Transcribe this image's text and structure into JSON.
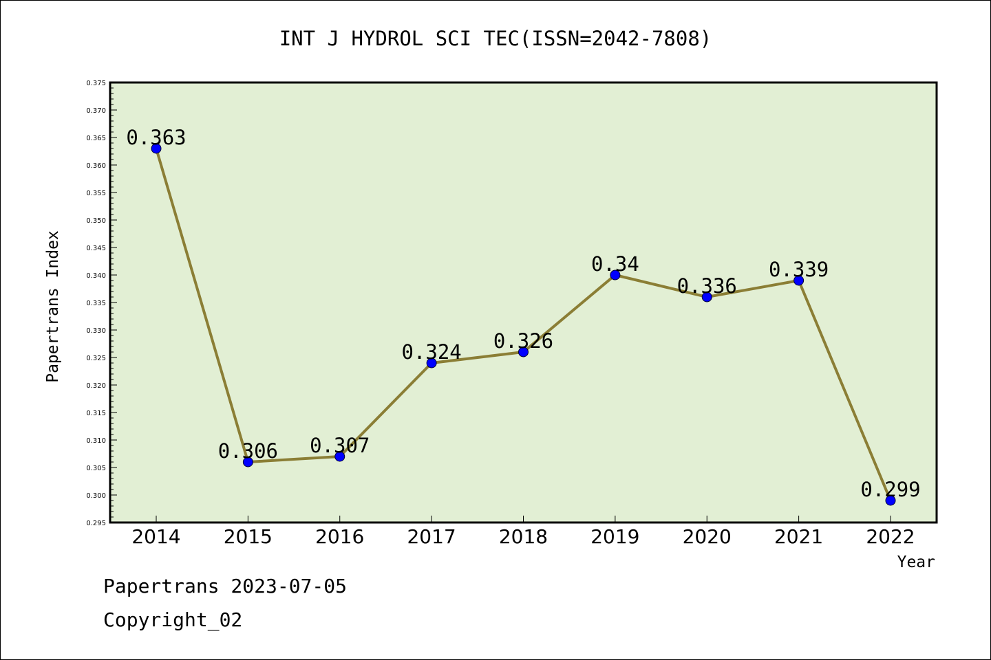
{
  "chart_data": {
    "type": "line",
    "title": "INT J HYDROL SCI TEC(ISSN=2042-7808)",
    "xlabel": "Year",
    "ylabel": "Papertrans Index",
    "categories": [
      "2014",
      "2015",
      "2016",
      "2017",
      "2018",
      "2019",
      "2020",
      "2021",
      "2022"
    ],
    "series": [
      {
        "values": [
          0.363,
          0.306,
          0.307,
          0.324,
          0.326,
          0.34,
          0.336,
          0.339,
          0.299
        ],
        "labels": [
          "0.363",
          "0.306",
          "0.307",
          "0.324",
          "0.326",
          "0.34",
          "0.336",
          "0.339",
          "0.299"
        ]
      }
    ],
    "ylim": [
      0.295,
      0.375
    ],
    "ytick_step": 0.005,
    "ytick_labels": [
      "0.295",
      "0.300",
      "0.305",
      "0.310",
      "0.315",
      "0.320",
      "0.325",
      "0.330",
      "0.335",
      "0.340",
      "0.345",
      "0.350",
      "0.355",
      "0.360",
      "0.365",
      "0.370",
      "0.375"
    ],
    "grid": false,
    "legend": "none",
    "colors": {
      "plot_background": "#e2efd4",
      "line": "#8b7e35",
      "marker": "#0000ff"
    }
  },
  "footer": {
    "date_line": "Papertrans 2023-07-05",
    "copyright_line": "Copyright_02"
  }
}
